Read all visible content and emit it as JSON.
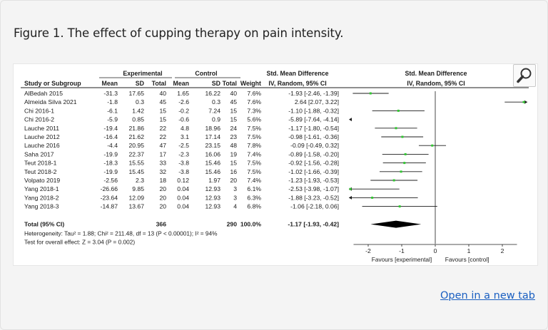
{
  "caption": "Figure 1. The effect of cupping therapy on pain intensity.",
  "open_link": "Open in a new tab",
  "zoom_icon": "magnifier-icon",
  "colors": {
    "ci_line": "#1c1c1c",
    "point": "#32c832",
    "diamond": "#000000",
    "link": "#1a5fc1"
  },
  "chart_data": {
    "type": "forest",
    "title": "",
    "group_headers": {
      "experimental": "Experimental",
      "control": "Control"
    },
    "columns": {
      "study": "Study or Subgroup",
      "exp_mean": "Mean",
      "exp_sd": "SD",
      "exp_total": "Total",
      "ctl_mean": "Mean",
      "ctl_sd": "SD",
      "ctl_total": "Total",
      "weight": "Weight",
      "smd_header": "Std. Mean Difference",
      "smd_sub": "IV, Random, 95% CI"
    },
    "plot_header": "Std. Mean Difference",
    "plot_subheader": "IV, Random, 95% CI",
    "studies": [
      {
        "name": "AlBedah 2015",
        "exp_mean": "-31.3",
        "exp_sd": "17.65",
        "exp_total": "40",
        "ctl_mean": "1.65",
        "ctl_sd": "16.22",
        "ctl_total": "40",
        "weight": "7.6%",
        "ci_text": "-1.93 [-2.46, -1.39]",
        "smd": -1.93,
        "lo": -2.46,
        "hi": -1.39
      },
      {
        "name": "Almeida Silva 2021",
        "exp_mean": "-1.8",
        "exp_sd": "0.3",
        "exp_total": "45",
        "ctl_mean": "-2.6",
        "ctl_sd": "0.3",
        "ctl_total": "45",
        "weight": "7.6%",
        "ci_text": "2.64 [2.07, 3.22]",
        "smd": 2.64,
        "lo": 2.07,
        "hi": 3.22
      },
      {
        "name": "Chi 2016-1",
        "exp_mean": "-6.1",
        "exp_sd": "1.42",
        "exp_total": "15",
        "ctl_mean": "-0.2",
        "ctl_sd": "7.24",
        "ctl_total": "15",
        "weight": "7.3%",
        "ci_text": "-1.10 [-1.88, -0.32]",
        "smd": -1.1,
        "lo": -1.88,
        "hi": -0.32
      },
      {
        "name": "Chi 2016-2",
        "exp_mean": "-5.9",
        "exp_sd": "0.85",
        "exp_total": "15",
        "ctl_mean": "-0.6",
        "ctl_sd": "0.9",
        "ctl_total": "15",
        "weight": "5.6%",
        "ci_text": "-5.89 [-7.64, -4.14]",
        "smd": -5.89,
        "lo": -7.64,
        "hi": -4.14
      },
      {
        "name": "Lauche 2011",
        "exp_mean": "-19.4",
        "exp_sd": "21.86",
        "exp_total": "22",
        "ctl_mean": "4.8",
        "ctl_sd": "18.96",
        "ctl_total": "24",
        "weight": "7.5%",
        "ci_text": "-1.17 [-1.80, -0.54]",
        "smd": -1.17,
        "lo": -1.8,
        "hi": -0.54
      },
      {
        "name": "Lauche 2012",
        "exp_mean": "-16.4",
        "exp_sd": "21.62",
        "exp_total": "22",
        "ctl_mean": "3.1",
        "ctl_sd": "17.14",
        "ctl_total": "23",
        "weight": "7.5%",
        "ci_text": "-0.98 [-1.61, -0.36]",
        "smd": -0.98,
        "lo": -1.61,
        "hi": -0.36
      },
      {
        "name": "Lauche 2016",
        "exp_mean": "-4.4",
        "exp_sd": "20.95",
        "exp_total": "47",
        "ctl_mean": "-2.5",
        "ctl_sd": "23.15",
        "ctl_total": "48",
        "weight": "7.8%",
        "ci_text": "-0.09 [-0.49, 0.32]",
        "smd": -0.09,
        "lo": -0.49,
        "hi": 0.32
      },
      {
        "name": "Saha 2017",
        "exp_mean": "-19.9",
        "exp_sd": "22.37",
        "exp_total": "17",
        "ctl_mean": "-2.3",
        "ctl_sd": "16.06",
        "ctl_total": "19",
        "weight": "7.4%",
        "ci_text": "-0.89 [-1.58, -0.20]",
        "smd": -0.89,
        "lo": -1.58,
        "hi": -0.2
      },
      {
        "name": "Teut 2018-1",
        "exp_mean": "-18.3",
        "exp_sd": "15.55",
        "exp_total": "33",
        "ctl_mean": "-3.8",
        "ctl_sd": "15.46",
        "ctl_total": "15",
        "weight": "7.5%",
        "ci_text": "-0.92 [-1.56, -0.28]",
        "smd": -0.92,
        "lo": -1.56,
        "hi": -0.28
      },
      {
        "name": "Teut 2018-2",
        "exp_mean": "-19.9",
        "exp_sd": "15.45",
        "exp_total": "32",
        "ctl_mean": "-3.8",
        "ctl_sd": "15.46",
        "ctl_total": "16",
        "weight": "7.5%",
        "ci_text": "-1.02 [-1.66, -0.39]",
        "smd": -1.02,
        "lo": -1.66,
        "hi": -0.39
      },
      {
        "name": "Volpato 2019",
        "exp_mean": "-2.56",
        "exp_sd": "2.3",
        "exp_total": "18",
        "ctl_mean": "0.12",
        "ctl_sd": "1.97",
        "ctl_total": "20",
        "weight": "7.4%",
        "ci_text": "-1.23 [-1.93, -0.53]",
        "smd": -1.23,
        "lo": -1.93,
        "hi": -0.53
      },
      {
        "name": "Yang 2018-1",
        "exp_mean": "-26.66",
        "exp_sd": "9.85",
        "exp_total": "20",
        "ctl_mean": "0.04",
        "ctl_sd": "12.93",
        "ctl_total": "3",
        "weight": "6.1%",
        "ci_text": "-2.53 [-3.98, -1.07]",
        "smd": -2.53,
        "lo": -3.98,
        "hi": -1.07
      },
      {
        "name": "Yang 2018-2",
        "exp_mean": "-23.64",
        "exp_sd": "12.09",
        "exp_total": "20",
        "ctl_mean": "0.04",
        "ctl_sd": "12.93",
        "ctl_total": "3",
        "weight": "6.3%",
        "ci_text": "-1.88 [-3.23, -0.52]",
        "smd": -1.88,
        "lo": -3.23,
        "hi": -0.52
      },
      {
        "name": "Yang 2018-3",
        "exp_mean": "-14.87",
        "exp_sd": "13.67",
        "exp_total": "20",
        "ctl_mean": "0.04",
        "ctl_sd": "12.93",
        "ctl_total": "4",
        "weight": "6.8%",
        "ci_text": "-1.06 [-2.18, 0.06]",
        "smd": -1.06,
        "lo": -2.18,
        "hi": 0.06
      }
    ],
    "total": {
      "label": "Total (95% CI)",
      "exp_total": "366",
      "ctl_total": "290",
      "weight": "100.0%",
      "ci_text": "-1.17 [-1.93, -0.42]",
      "smd": -1.17,
      "lo": -1.93,
      "hi": -0.42
    },
    "heterogeneity": "Heterogeneity: Tau² = 1.88; Chi² = 211.48, df = 13 (P < 0.00001); I² = 94%",
    "overall_effect": "Test for overall effect: Z = 3.04 (P = 0.002)",
    "x_axis": {
      "min": -2.5,
      "max": 2.5,
      "ticks": [
        -2,
        -1,
        0,
        1,
        2
      ],
      "tick_labels": [
        "-2",
        "-1",
        "0",
        "1",
        "2"
      ]
    },
    "favours_left": "Favours [experimental]",
    "favours_right": "Favours [control]"
  }
}
